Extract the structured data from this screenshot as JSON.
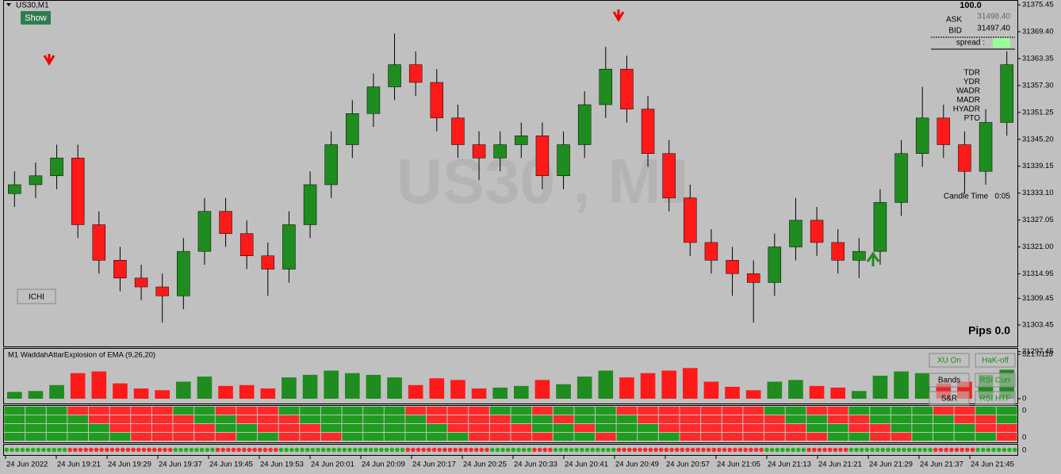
{
  "window": {
    "symbol": "US30,M1",
    "show_button": "Show",
    "ichi_button": "ICHI",
    "watermark": "US30 , M1",
    "pips": "Pips 0.0"
  },
  "info_panel": {
    "top": "100.0",
    "ask_label": "ASK",
    "ask": "31498.40",
    "bid_label": "BID",
    "bid": "31497.40",
    "spread": "spread :",
    "rows": [
      "TDR",
      "YDR",
      "WADR",
      "MADR",
      "HYADR",
      "PTO"
    ],
    "candle_time_label": "Candle Time",
    "candle_time": "0:05"
  },
  "chart_data": {
    "type": "candlestick",
    "open": [
      31333,
      31335,
      31337,
      31341,
      31326,
      31318,
      31314,
      31312,
      31310,
      31320,
      31329,
      31324,
      31319,
      31316,
      31326,
      31335,
      31344,
      31351,
      31357,
      31362,
      31358,
      31350,
      31344,
      31341,
      31344,
      31346,
      31337,
      31344,
      31353,
      31361,
      31352,
      31342,
      31332,
      31322,
      31318,
      31315,
      31313,
      31321,
      31327,
      31322,
      31318,
      31320,
      31331,
      31342,
      31350,
      31344,
      31338,
      31349
    ],
    "high": [
      31338,
      31340,
      31344,
      31344,
      31329,
      31321,
      31317,
      31315,
      31323,
      31332,
      31332,
      31327,
      31322,
      31329,
      31338,
      31347,
      31354,
      31360,
      31369,
      31365,
      31361,
      31353,
      31347,
      31347,
      31349,
      31349,
      31347,
      31356,
      31366,
      31364,
      31355,
      31345,
      31335,
      31325,
      31321,
      31318,
      31324,
      31332,
      31330,
      31325,
      31323,
      31334,
      31345,
      31357,
      31353,
      31347,
      31352,
      31365
    ],
    "low": [
      31330,
      31332,
      31334,
      31323,
      31315,
      31311,
      31309,
      31304,
      31307,
      31317,
      31321,
      31316,
      31310,
      31313,
      31323,
      31332,
      31341,
      31348,
      31354,
      31355,
      31347,
      31341,
      31336,
      31338,
      31341,
      31334,
      31334,
      31341,
      31350,
      31349,
      31339,
      31329,
      31319,
      31315,
      31310,
      31304,
      31310,
      31318,
      31319,
      31315,
      31314,
      31317,
      31328,
      31339,
      31341,
      31333,
      31335,
      31346
    ],
    "close": [
      31335,
      31337,
      31341,
      31326,
      31318,
      31314,
      31312,
      31310,
      31320,
      31329,
      31324,
      31319,
      31316,
      31326,
      31335,
      31344,
      31351,
      31357,
      31362,
      31358,
      31350,
      31344,
      31341,
      31344,
      31346,
      31337,
      31344,
      31353,
      31361,
      31352,
      31342,
      31332,
      31322,
      31318,
      31315,
      31313,
      31321,
      31327,
      31322,
      31318,
      31320,
      31331,
      31342,
      31350,
      31344,
      31338,
      31349,
      31362
    ],
    "up_color": "#1e8c1e",
    "down_color": "#ff1a1a",
    "ylim": [
      31298.63,
      31376.36
    ],
    "yticks": [
      {
        "value": 31375.45,
        "label": "31375.45"
      },
      {
        "value": 31369.4,
        "label": "31369.40"
      },
      {
        "value": 31363.35,
        "label": "31363.35"
      },
      {
        "value": 31357.3,
        "label": "31357.30"
      },
      {
        "value": 31351.25,
        "label": "31351.25"
      },
      {
        "value": 31345.2,
        "label": "31345.20"
      },
      {
        "value": 31339.15,
        "label": "31339.15"
      },
      {
        "value": 31333.1,
        "label": "31333.10"
      },
      {
        "value": 31327.05,
        "label": "31327.05"
      },
      {
        "value": 31321.0,
        "label": "31321.00"
      },
      {
        "value": 31314.95,
        "label": "31314.95"
      },
      {
        "value": 31309.45,
        "label": "31309.45"
      },
      {
        "value": 31303.45,
        "label": "31303.45"
      },
      {
        "value": 31297.45,
        "label": "31297.45"
      }
    ],
    "xtick_labels": [
      "24 Jun 2022",
      "24 Jun 19:21",
      "24 Jun 19:29",
      "24 Jun 19:37",
      "24 Jun 19:45",
      "24 Jun 19:53",
      "24 Jun 20:01",
      "24 Jun 20:09",
      "24 Jun 20:17",
      "24 Jun 20:25",
      "24 Jun 20:33",
      "24 Jun 20:41",
      "24 Jun 20:49",
      "24 Jun 20:57",
      "24 Jun 21:05",
      "24 Jun 21:13",
      "24 Jun 21:21",
      "24 Jun 21:29",
      "24 Jun 21:37",
      "24 Jun 21:45"
    ]
  },
  "indicator": {
    "title": "M1 WaddahAttarExplosion of EMA (9,26,20)",
    "values": [
      80,
      90,
      160,
      300,
      320,
      180,
      120,
      100,
      200,
      260,
      150,
      160,
      120,
      250,
      280,
      330,
      300,
      280,
      250,
      160,
      240,
      220,
      120,
      130,
      150,
      220,
      170,
      260,
      330,
      250,
      300,
      330,
      360,
      200,
      140,
      100,
      200,
      220,
      150,
      130,
      90,
      270,
      320,
      300,
      180,
      200,
      280,
      340
    ],
    "ylim": [
      0,
      521.0118
    ],
    "yticks": [
      0,
      521.0118
    ],
    "buttons": [
      "XU On",
      "HaK-off",
      "Bands",
      "RSI Curr",
      "S&R",
      "RSI HTF"
    ],
    "zero_labels": [
      "0",
      "0",
      "0"
    ]
  }
}
